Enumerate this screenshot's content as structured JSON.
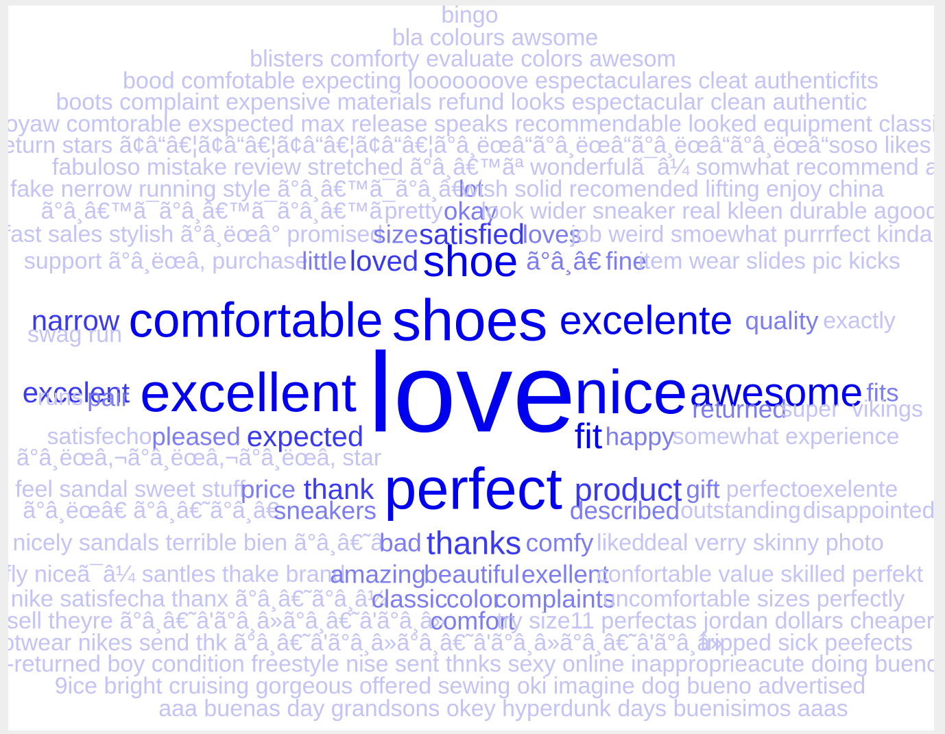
{
  "wordcloud": {
    "colors": {
      "background": "#ffffff",
      "page": "#eeeeee",
      "level_1": "#0000ee",
      "level_2": "#3a3af0",
      "level_3": "#7d7df2",
      "level_4": "#c3c3f6"
    },
    "rows": [
      [
        [
          "bingo",
          4,
          29,
          685
        ]
      ],
      [
        [
          "bla colours awsome",
          4,
          29,
          722
        ]
      ],
      [
        [
          "blisters comforty evaluate colors awesom",
          4,
          29,
          675
        ]
      ],
      [
        [
          "bood comfotable expecting looooooove espectaculares cleat authenticfits",
          4,
          29,
          730
        ]
      ],
      [
        [
          "boots complaint expensive materials refund looks espectacular clean authentic",
          4,
          29,
          673
        ]
      ],
      [
        [
          "booyaw comtorable exspected max release speaks recommendable looked equipment classics",
          4,
          29,
          685
        ]
      ],
      [
        [
          "return stars ã¢â“â€¦ã¢â“â€¦ã¢â“â€¦ã¢â“â€¦ã°â¸ëœâ“ã°â¸ëœâ“ã°â¸ëœâ“ã°â¸ëœâ“soso likes",
          4,
          29,
          675
        ]
      ],
      [
        [
          "fabuloso mistake review stretched ã°â¸â€™ãª wonderfulã¯â¼ somwhat recommend alot",
          4,
          29,
          740
        ]
      ],
      [
        [
          "fake nerrow running style ã°â¸â€™ã¯ã°â¸â€",
          4,
          29,
          346
        ],
        [
          "lot",
          3,
          29,
          687
        ],
        [
          "wish solid recomended lifting enjoy china",
          4,
          29,
          981
        ]
      ],
      [
        [
          "ã°â¸â€™ã¯ã°â¸â€™ã¯ã°â¸â€™ã¯",
          4,
          29,
          318
        ],
        [
          "pretty",
          4,
          29,
          603
        ],
        [
          "okay",
          3,
          31,
          686
        ],
        [
          "look wider sneaker real kleen durable agood",
          4,
          29,
          1035
        ]
      ],
      [
        [
          "fast sales stylish ã°â¸ëœâ° promised",
          4,
          29,
          282
        ],
        [
          "size",
          3,
          31,
          577
        ],
        [
          "satisfied",
          2,
          36,
          688
        ],
        [
          "loves",
          3,
          31,
          805
        ],
        [
          "job weird smoewhat purrrfect kinda",
          4,
          29,
          1096
        ]
      ],
      [
        [
          "support ã°â¸ëœâ, purchase",
          4,
          29,
          242
        ],
        [
          "little",
          3,
          31,
          473
        ],
        [
          "loved",
          2,
          36,
          560
        ],
        [
          "shoe",
          1,
          54,
          686
        ],
        [
          "ã°â¸â€",
          3,
          31,
          822
        ],
        [
          "fine",
          3,
          31,
          913
        ],
        [
          "item wear slides pic kicks",
          4,
          29,
          1122
        ]
      ],
      [
        [
          "narrow",
          2,
          36,
          110
        ],
        [
          "comfortable",
          1,
          60,
          373
        ],
        [
          "shoes",
          1,
          72,
          685
        ],
        [
          "excelente",
          1,
          50,
          942
        ],
        [
          "quality",
          3,
          31,
          1140
        ],
        [
          "exactly",
          4,
          29,
          1253
        ]
      ],
      [
        [
          "swag run",
          4,
          29,
          109
        ]
      ],
      [
        [
          "excelent",
          2,
          36,
          111
        ],
        [
          "excellent",
          1,
          68,
          362
        ],
        [
          "love",
          1,
          140,
          688
        ],
        [
          "nice",
          1,
          76,
          920
        ],
        [
          "awesome",
          1,
          50,
          1132
        ],
        [
          "fits",
          3,
          31,
          1287
        ]
      ],
      [
        [
          "runs",
          4,
          29,
          88
        ],
        [
          "pair",
          3,
          31,
          158
        ]
      ],
      [
        [
          "returned",
          3,
          31,
          1078
        ],
        [
          "super",
          4,
          29,
          1181
        ],
        [
          "vikings",
          4,
          29,
          1294
        ]
      ],
      [
        [
          "satisfecho",
          4,
          29,
          145
        ],
        [
          "pleased",
          3,
          31,
          286
        ],
        [
          "expected",
          2,
          36,
          445
        ],
        [
          "fit",
          1,
          44,
          858
        ],
        [
          "happy",
          3,
          31,
          933
        ],
        [
          "somewhat experience",
          4,
          29,
          1146
        ]
      ],
      [
        [
          "ã°â¸ëœâ,¬ã°â¸ëœâ,¬ã°â¸ëœâ, star",
          4,
          29,
          290
        ]
      ],
      [
        [
          "feel sandal sweet stuff",
          4,
          29,
          190
        ],
        [
          "price",
          3,
          31,
          391
        ],
        [
          "thank",
          2,
          36,
          494
        ],
        [
          "perfect",
          1,
          72,
          690
        ],
        [
          "product",
          2,
          40,
          916
        ],
        [
          "gift",
          3,
          31,
          1025
        ],
        [
          "perfecto",
          4,
          29,
          1120
        ],
        [
          "exelente",
          4,
          29,
          1245
        ]
      ],
      [
        [
          "ã°â¸ëœâ€ ã°â¸â€˜ã°â¸â€",
          4,
          29,
          220
        ],
        [
          "sneakers",
          3,
          31,
          474
        ],
        [
          "described",
          3,
          31,
          911
        ],
        [
          "outstanding",
          4,
          29,
          1080
        ],
        [
          "disappointed",
          4,
          29,
          1267
        ]
      ],
      [
        [
          "nicely sandals terrible bien ã°â¸â€˜â",
          4,
          29,
          289
        ],
        [
          "bad",
          3,
          31,
          584
        ],
        [
          "thanks",
          2,
          40,
          691
        ],
        [
          "comfy",
          3,
          31,
          816
        ],
        [
          "liked",
          4,
          29,
          905
        ],
        [
          "deal verry skinny photo",
          4,
          29,
          1114
        ]
      ],
      [
        [
          "fly niceã¯â¼ santles thake brand",
          4,
          29,
          255
        ],
        [
          "amazing",
          3,
          31,
          551
        ],
        [
          "beautiful",
          3,
          31,
          688
        ],
        [
          "exellent",
          3,
          31,
          824
        ],
        [
          "confortable value skilled perfekt",
          4,
          29,
          1108
        ]
      ],
      [
        [
          "nike satisfecha thanx ã°â¸â€˜ã°â¸â¼",
          4,
          29,
          290
        ],
        [
          "classic",
          3,
          31,
          597
        ],
        [
          "color",
          3,
          31,
          691
        ],
        [
          "complaints",
          3,
          31,
          809
        ],
        [
          "uncomfortable sizes perfectly",
          4,
          29,
          1099
        ]
      ],
      [
        [
          "sell theyre ã°â¸â€˜â'ã°â¸â»ã°â¸â€˜â'ã°â¸â»",
          4,
          29,
          330
        ],
        [
          "comfort",
          3,
          31,
          689
        ],
        [
          "try size11 perfectas jordan dollars cheaper",
          4,
          29,
          1043
        ]
      ],
      [
        [
          "footwear nikes send thk ã°â¸â€˜â'ã°â¸â»ã°â¸â€˜â'ã°â¸â»ã°â¸â€˜â'ã°â¸â»",
          4,
          29,
          514
        ],
        [
          "tripped sick peefects",
          4,
          29,
          1176
        ]
      ],
      [
        [
          "-returned boy condition freestyle nise sent thnks sexy online inapproprieacute doing buenos",
          4,
          29,
          698
        ]
      ],
      [
        [
          "9ice bright cruising gorgeous offered sewing oki imagine dog bueno advertised",
          4,
          29,
          671
        ]
      ],
      [
        [
          "aaa buenas day grandsons okey hyperdunk days buenisimos aaas",
          4,
          29,
          734
        ]
      ]
    ]
  }
}
